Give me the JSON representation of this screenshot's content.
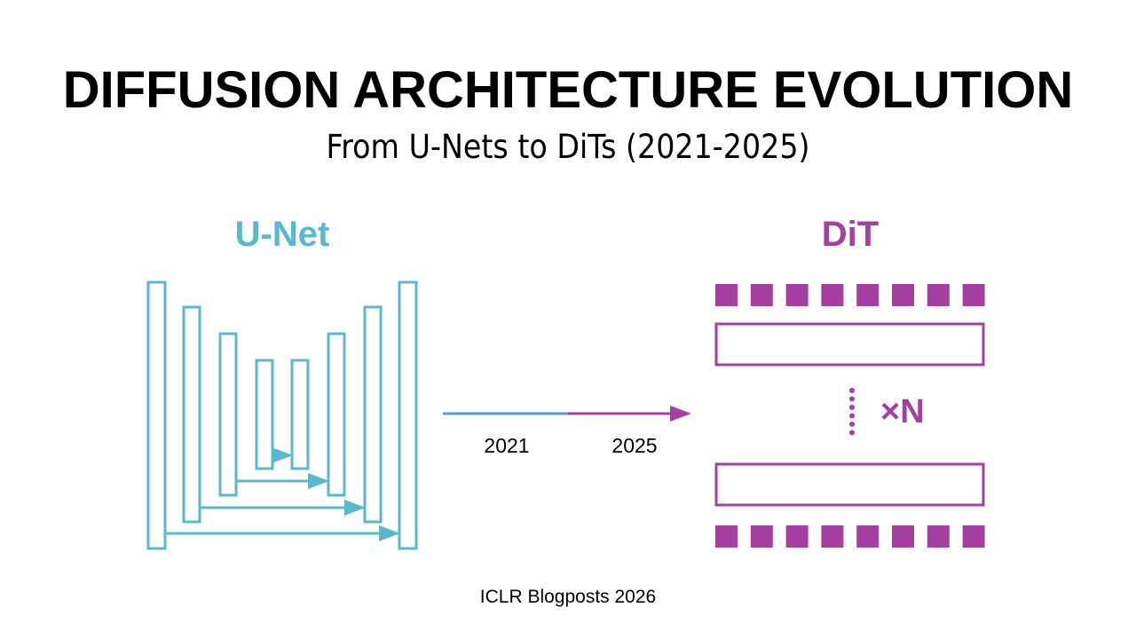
{
  "title": "DIFFUSION ARCHITECTURE EVOLUTION",
  "subtitle": "From U-Nets to DiTs (2021-2025)",
  "unet": {
    "label": "U-Net",
    "color": "#5bb7cc"
  },
  "dit": {
    "label": "DiT",
    "color": "#a63fa2",
    "repeat_label": "×N"
  },
  "timeline": {
    "start": "2021",
    "end": "2025",
    "start_color": "#5b9bd5",
    "end_color": "#a63fa2"
  },
  "footer": "ICLR Blogposts 2026"
}
